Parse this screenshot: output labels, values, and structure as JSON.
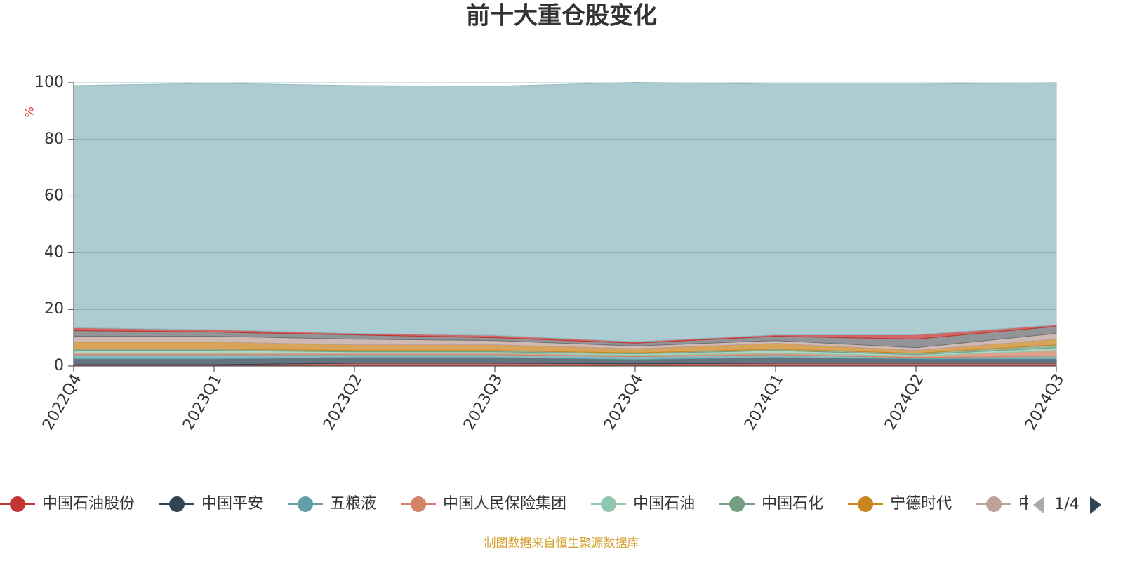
{
  "chart_data": {
    "type": "stacked-area",
    "title": "前十大重仓股变化",
    "y_axis_label": "%",
    "categories": [
      "2022Q4",
      "2023Q1",
      "2023Q2",
      "2023Q3",
      "2023Q4",
      "2024Q1",
      "2024Q2",
      "2024Q3"
    ],
    "ylim": [
      0,
      100
    ],
    "yticks": [
      0,
      20,
      40,
      60,
      80,
      100
    ],
    "grid": true,
    "series": [
      {
        "name": "中国石油股份",
        "color": "#c23531",
        "values": [
          0.5,
          0.5,
          1,
          1,
          0.8,
          1,
          1,
          1
        ]
      },
      {
        "name": "中国平安",
        "color": "#2f4554",
        "values": [
          2,
          2,
          2,
          2,
          1.5,
          2,
          1.5,
          1.5
        ]
      },
      {
        "name": "五粮液",
        "color": "#61a0a8",
        "values": [
          1.5,
          1.5,
          1,
          1,
          1,
          1,
          0.5,
          1
        ]
      },
      {
        "name": "中国人民保险集团",
        "color": "#d48265",
        "values": [
          0.5,
          0.5,
          0.5,
          0.5,
          0.5,
          0.5,
          0.5,
          2
        ]
      },
      {
        "name": "中国石油",
        "color": "#91c7ae",
        "values": [
          1,
          1,
          0.5,
          0.5,
          0.5,
          1,
          0.5,
          1
        ]
      },
      {
        "name": "中国石化",
        "color": "#749f83",
        "values": [
          0.5,
          0.5,
          0.5,
          0.5,
          0.3,
          0.5,
          0.5,
          1
        ]
      },
      {
        "name": "宁德时代",
        "color": "#ca8622",
        "values": [
          2.5,
          2.5,
          2,
          2,
          1.5,
          2,
          1,
          2
        ]
      },
      {
        "name": "中国中",
        "color": "#bda29a",
        "values": [
          2,
          2,
          2,
          1.5,
          1,
          1,
          1,
          2
        ]
      },
      {
        "color": "#6e7074",
        "values": [
          2,
          1.5,
          1.5,
          1,
          1,
          1.5,
          3,
          2.5
        ]
      },
      {
        "color": "#c23531",
        "values": [
          1,
          0.8,
          0.5,
          0.8,
          0.5,
          0.5,
          1.5,
          0.5
        ]
      },
      {
        "color": "#91bbc2",
        "values": [
          85.5,
          87,
          87.5,
          88,
          91.5,
          88.5,
          88.5,
          85.5
        ]
      }
    ],
    "legend_page": "1/4",
    "footer": "制图数据来自恒生聚源数据库"
  }
}
